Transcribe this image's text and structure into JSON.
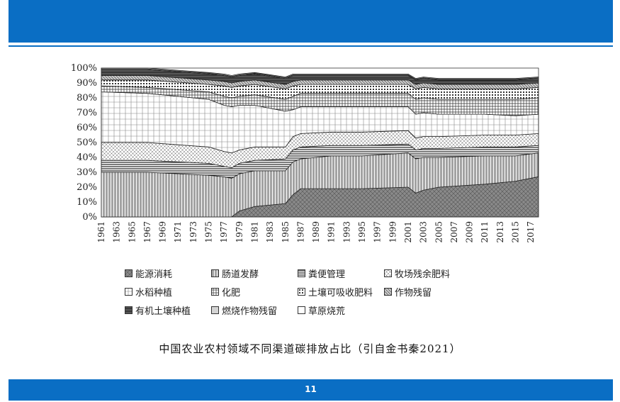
{
  "page": {
    "number": "11"
  },
  "caption": "中国农业农村领域不同渠道碳排放占比（引自金书秦2021）",
  "legend": [
    {
      "label": "能源消耗"
    },
    {
      "label": "肠道发酵"
    },
    {
      "label": "粪便管理"
    },
    {
      "label": "牧场残余肥料"
    },
    {
      "label": "水稻种植"
    },
    {
      "label": "化肥"
    },
    {
      "label": "土壤可吸收肥料"
    },
    {
      "label": "作物残留"
    },
    {
      "label": "有机土壤种植"
    },
    {
      "label": "燃烧作物残留"
    },
    {
      "label": "草原烧荒"
    }
  ],
  "chart_data": {
    "type": "area",
    "stacked": true,
    "ylim": [
      0,
      100
    ],
    "yticks": [
      "0%",
      "10%",
      "20%",
      "30%",
      "40%",
      "50%",
      "60%",
      "70%",
      "80%",
      "90%",
      "100%"
    ],
    "xtick_labels": [
      "1961",
      "1963",
      "1965",
      "1967",
      "1969",
      "1971",
      "1973",
      "1975",
      "1977",
      "1979",
      "1981",
      "1983",
      "1985",
      "1987",
      "1989",
      "1991",
      "1993",
      "1995",
      "1997",
      "1999",
      "2001",
      "2003",
      "2005",
      "2007",
      "2009",
      "2011",
      "2013",
      "2015",
      "2017"
    ],
    "x": [
      1961,
      1967,
      1975,
      1977,
      1978,
      1979,
      1981,
      1985,
      1986,
      1987,
      1991,
      1995,
      2001,
      2002,
      2003,
      2005,
      2011,
      2015,
      2018
    ],
    "series": [
      {
        "name": "能源消耗",
        "values": [
          0,
          0,
          0,
          0,
          0,
          4,
          7,
          9,
          15,
          19,
          19,
          19,
          20,
          16,
          18,
          20,
          22,
          24,
          27
        ]
      },
      {
        "name": "肠道发酵",
        "values": [
          30,
          30,
          28,
          27,
          26,
          25,
          24,
          22,
          22,
          20,
          22,
          22,
          23,
          23,
          22,
          20,
          19,
          17,
          16
        ]
      },
      {
        "name": "粪便管理",
        "values": [
          8,
          8,
          8,
          7,
          7,
          7,
          7,
          8,
          8,
          8,
          7,
          7,
          6,
          6,
          6,
          6,
          6,
          6,
          5
        ]
      },
      {
        "name": "牧场残余肥料",
        "values": [
          12,
          12,
          11,
          10,
          10,
          9,
          9,
          8,
          9,
          9,
          9,
          9,
          9,
          8,
          8,
          8,
          8,
          8,
          8
        ]
      },
      {
        "name": "水稻种植",
        "values": [
          34,
          33,
          32,
          31,
          31,
          30,
          28,
          24,
          18,
          18,
          17,
          17,
          16,
          16,
          16,
          15,
          14,
          13,
          13
        ]
      },
      {
        "name": "化肥",
        "values": [
          4,
          4,
          5,
          6,
          6,
          6,
          7,
          8,
          9,
          9,
          9,
          9,
          9,
          10,
          10,
          10,
          10,
          11,
          11
        ]
      },
      {
        "name": "土壤可吸收肥料",
        "values": [
          4,
          5,
          5,
          7,
          7,
          7,
          7,
          7,
          7,
          6,
          6,
          6,
          6,
          7,
          7,
          7,
          7,
          7,
          7
        ]
      },
      {
        "name": "作物残留",
        "values": [
          3,
          3,
          3,
          3,
          3,
          3,
          3,
          3,
          3,
          3,
          3,
          3,
          3,
          3,
          3,
          3,
          3,
          3,
          3
        ]
      },
      {
        "name": "有机土壤种植",
        "values": [
          4,
          4,
          4,
          4,
          4,
          4,
          4,
          4,
          4,
          3,
          3,
          3,
          3,
          3,
          3,
          3,
          3,
          3,
          3
        ]
      },
      {
        "name": "燃烧作物残留",
        "values": [
          0.5,
          0.5,
          0.5,
          0.5,
          0.5,
          0.5,
          0.5,
          0.5,
          0.5,
          0.5,
          0.5,
          0.5,
          0.5,
          0.5,
          0.5,
          0.5,
          0.5,
          0.5,
          0.5
        ]
      },
      {
        "name": "草原烧荒",
        "values": [
          0.5,
          0.5,
          0.5,
          0.5,
          0.5,
          0.5,
          0.5,
          0.5,
          0.5,
          0.5,
          0.5,
          0.5,
          0.5,
          0.5,
          0.5,
          0.5,
          0.5,
          0.5,
          0.5
        ]
      }
    ],
    "grid": false,
    "legend_position": "bottom"
  }
}
